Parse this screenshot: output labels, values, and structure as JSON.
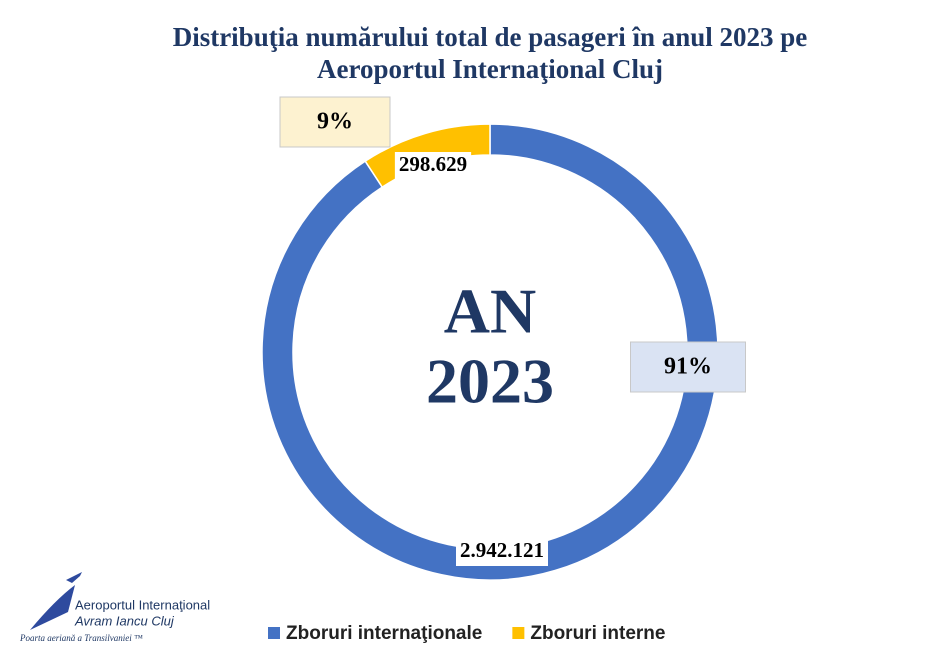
{
  "chart_data": {
    "type": "donut",
    "title": [
      "Distribuţia numărului total de pasageri în anul 2023 pe",
      "Aeroportul Internaţional Cluj"
    ],
    "center_text": [
      "AN",
      "2023"
    ],
    "categories": [
      "Zboruri internaţionale",
      "Zboruri interne"
    ],
    "values": [
      2942121,
      298629
    ],
    "value_labels": [
      "2.942.121",
      "298.629"
    ],
    "percent_labels": [
      "91%",
      "9%"
    ],
    "colors": [
      "#4472c4",
      "#ffc000"
    ],
    "legend": "bottom"
  },
  "logo": {
    "name": [
      "Aeroportul Internaţional",
      "Avram Iancu Cluj"
    ],
    "slogan": "Poarta aeriană a Transilvaniei ™"
  }
}
